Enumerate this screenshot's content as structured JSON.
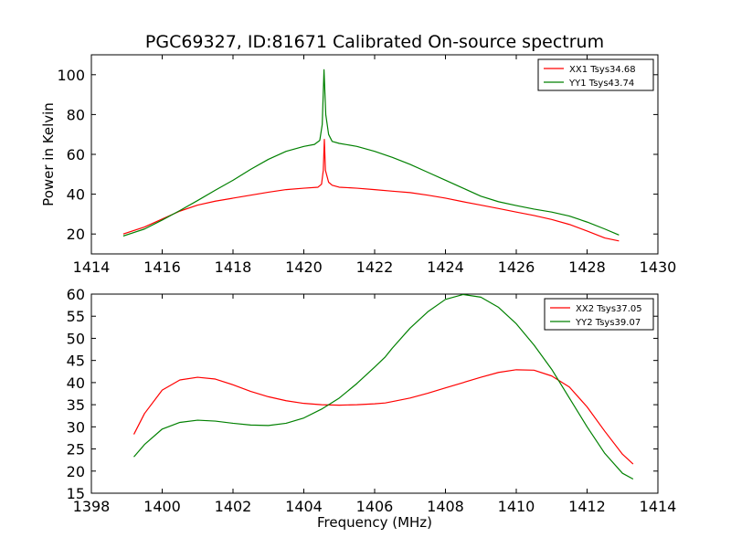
{
  "chart_data": [
    {
      "type": "line",
      "title": "PGC69327, ID:81671 Calibrated On-source spectrum",
      "xlabel": "",
      "ylabel": "Power in Kelvin",
      "xlim": [
        1414,
        1430
      ],
      "ylim": [
        10,
        110
      ],
      "xticks": [
        1414,
        1416,
        1418,
        1420,
        1422,
        1424,
        1426,
        1428,
        1430
      ],
      "yticks": [
        20,
        40,
        60,
        80,
        100
      ],
      "grid": false,
      "legend": "top-right",
      "series": [
        {
          "name": "XX1 Tsys34.68",
          "color": "#ff0000",
          "points": [
            [
              1414.9,
              20
            ],
            [
              1415.5,
              23.5
            ],
            [
              1416.0,
              27.5
            ],
            [
              1416.5,
              31.5
            ],
            [
              1417.0,
              34.5
            ],
            [
              1417.5,
              36.5
            ],
            [
              1418.0,
              38
            ],
            [
              1418.5,
              39.5
            ],
            [
              1419.0,
              41
            ],
            [
              1419.5,
              42.3
            ],
            [
              1420.0,
              43
            ],
            [
              1420.4,
              43.5
            ],
            [
              1420.5,
              45
            ],
            [
              1420.55,
              52
            ],
            [
              1420.58,
              67.5
            ],
            [
              1420.61,
              52
            ],
            [
              1420.7,
              46
            ],
            [
              1420.8,
              44.5
            ],
            [
              1421.0,
              43.5
            ],
            [
              1421.5,
              43
            ],
            [
              1422.0,
              42.3
            ],
            [
              1422.5,
              41.5
            ],
            [
              1423.0,
              40.8
            ],
            [
              1423.5,
              39.5
            ],
            [
              1424.0,
              38
            ],
            [
              1424.5,
              36.2
            ],
            [
              1425.0,
              34.5
            ],
            [
              1425.5,
              32.8
            ],
            [
              1426.0,
              31
            ],
            [
              1426.5,
              29.3
            ],
            [
              1427.0,
              27.3
            ],
            [
              1427.5,
              24.8
            ],
            [
              1428.0,
              21.5
            ],
            [
              1428.5,
              18
            ],
            [
              1428.9,
              16.5
            ]
          ]
        },
        {
          "name": "YY1 Tsys43.74",
          "color": "#008000",
          "points": [
            [
              1414.9,
              19
            ],
            [
              1415.5,
              22.5
            ],
            [
              1416.0,
              27
            ],
            [
              1416.5,
              31.8
            ],
            [
              1417.0,
              36.8
            ],
            [
              1417.5,
              42
            ],
            [
              1418.0,
              47
            ],
            [
              1418.5,
              52.5
            ],
            [
              1419.0,
              57.5
            ],
            [
              1419.5,
              61.5
            ],
            [
              1420.0,
              64
            ],
            [
              1420.3,
              65
            ],
            [
              1420.45,
              67
            ],
            [
              1420.52,
              75
            ],
            [
              1420.57,
              102.5
            ],
            [
              1420.62,
              80
            ],
            [
              1420.7,
              70
            ],
            [
              1420.8,
              66.5
            ],
            [
              1421.0,
              65.5
            ],
            [
              1421.5,
              64
            ],
            [
              1422.0,
              61.5
            ],
            [
              1422.5,
              58.5
            ],
            [
              1423.0,
              55
            ],
            [
              1423.5,
              51
            ],
            [
              1424.0,
              47
            ],
            [
              1424.5,
              43
            ],
            [
              1425.0,
              39
            ],
            [
              1425.5,
              36.2
            ],
            [
              1426.0,
              34.3
            ],
            [
              1426.5,
              32.5
            ],
            [
              1427.0,
              31
            ],
            [
              1427.5,
              29
            ],
            [
              1428.0,
              26
            ],
            [
              1428.5,
              22.5
            ],
            [
              1428.9,
              19.5
            ]
          ]
        }
      ]
    },
    {
      "type": "line",
      "title": "",
      "xlabel": "Frequency (MHz)",
      "ylabel": "",
      "xlim": [
        1398,
        1414
      ],
      "ylim": [
        15,
        60
      ],
      "xticks": [
        1398,
        1400,
        1402,
        1404,
        1406,
        1408,
        1410,
        1412,
        1414
      ],
      "yticks": [
        15,
        20,
        25,
        30,
        35,
        40,
        45,
        50,
        55,
        60
      ],
      "grid": false,
      "legend": "top-right",
      "series": [
        {
          "name": "XX2 Tsys37.05",
          "color": "#ff0000",
          "points": [
            [
              1399.2,
              28.3
            ],
            [
              1399.5,
              33
            ],
            [
              1400.0,
              38.3
            ],
            [
              1400.5,
              40.6
            ],
            [
              1401.0,
              41.2
            ],
            [
              1401.5,
              40.8
            ],
            [
              1402.0,
              39.5
            ],
            [
              1402.5,
              38
            ],
            [
              1403.0,
              36.8
            ],
            [
              1403.5,
              35.9
            ],
            [
              1404.0,
              35.3
            ],
            [
              1404.5,
              35
            ],
            [
              1405.0,
              34.9
            ],
            [
              1405.5,
              35
            ],
            [
              1406.0,
              35.2
            ],
            [
              1406.3,
              35.4
            ],
            [
              1406.5,
              35.7
            ],
            [
              1407.0,
              36.5
            ],
            [
              1407.5,
              37.6
            ],
            [
              1408.0,
              38.8
            ],
            [
              1408.5,
              40
            ],
            [
              1409.0,
              41.2
            ],
            [
              1409.5,
              42.3
            ],
            [
              1410.0,
              42.9
            ],
            [
              1410.5,
              42.8
            ],
            [
              1411.0,
              41.5
            ],
            [
              1411.5,
              39
            ],
            [
              1412.0,
              34.5
            ],
            [
              1412.5,
              29
            ],
            [
              1413.0,
              23.8
            ],
            [
              1413.3,
              21.6
            ]
          ]
        },
        {
          "name": "YY2 Tsys39.07",
          "color": "#008000",
          "points": [
            [
              1399.2,
              23.2
            ],
            [
              1399.5,
              26
            ],
            [
              1400.0,
              29.5
            ],
            [
              1400.5,
              31
            ],
            [
              1401.0,
              31.5
            ],
            [
              1401.5,
              31.3
            ],
            [
              1402.0,
              30.8
            ],
            [
              1402.5,
              30.4
            ],
            [
              1403.0,
              30.3
            ],
            [
              1403.5,
              30.8
            ],
            [
              1404.0,
              32
            ],
            [
              1404.5,
              34
            ],
            [
              1405.0,
              36.5
            ],
            [
              1405.5,
              39.8
            ],
            [
              1406.0,
              43.5
            ],
            [
              1406.3,
              45.8
            ],
            [
              1406.5,
              47.8
            ],
            [
              1407.0,
              52.3
            ],
            [
              1407.5,
              56
            ],
            [
              1408.0,
              58.8
            ],
            [
              1408.5,
              59.9
            ],
            [
              1409.0,
              59.3
            ],
            [
              1409.5,
              57
            ],
            [
              1410.0,
              53.3
            ],
            [
              1410.5,
              48.5
            ],
            [
              1411.0,
              43
            ],
            [
              1411.5,
              36.5
            ],
            [
              1412.0,
              30
            ],
            [
              1412.5,
              24
            ],
            [
              1413.0,
              19.5
            ],
            [
              1413.3,
              18.2
            ]
          ]
        }
      ]
    }
  ]
}
